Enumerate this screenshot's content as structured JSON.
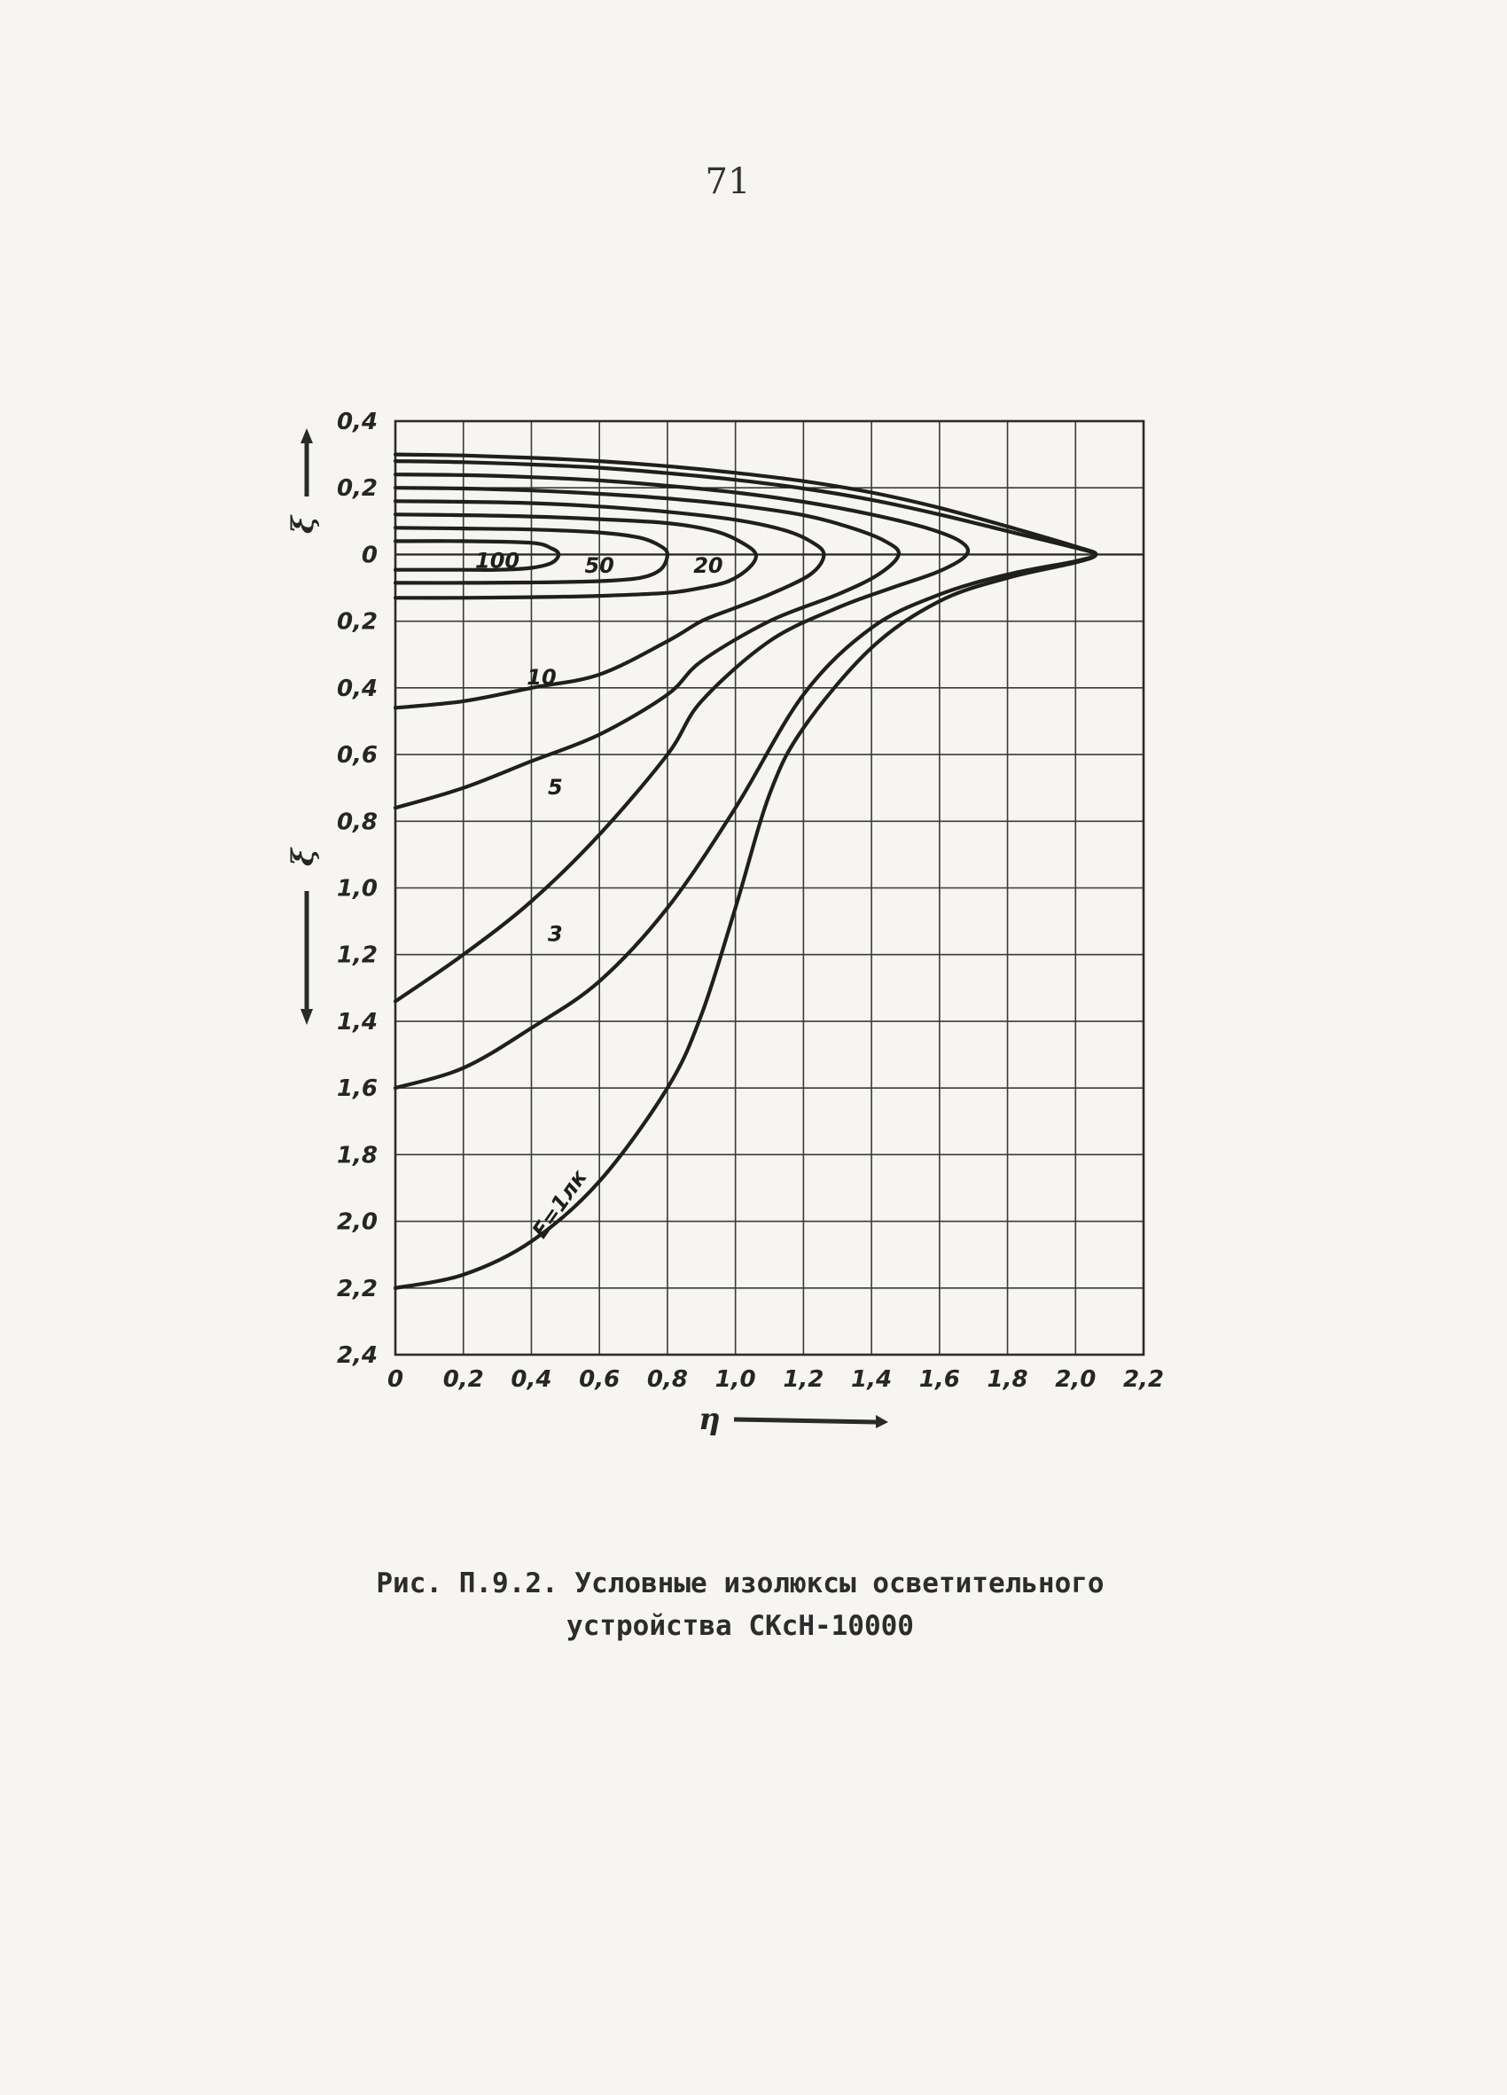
{
  "page": {
    "number": "71"
  },
  "caption": {
    "line1": "Рис. П.9.2. Условные изолюксы осветительного",
    "line2": "устройства СКсН-10000"
  },
  "chart_data": {
    "type": "line",
    "title": "",
    "xlabel": "η",
    "ylabel_up": "ξ",
    "ylabel_down": "ξ",
    "x_ticks": [
      "0",
      "0,2",
      "0,4",
      "0,6",
      "0,8",
      "1,0",
      "1,2",
      "1,4",
      "1,6",
      "1,8",
      "2,0",
      "2,2"
    ],
    "y_ticks_up": [
      "0,4",
      "0,2",
      "0"
    ],
    "y_ticks_down": [
      "0,2",
      "0,4",
      "0,6",
      "0,8",
      "1,0",
      "1,2",
      "1,4",
      "1,6",
      "1,8",
      "2,0",
      "2,2",
      "2,4"
    ],
    "xlim": [
      0,
      2.2
    ],
    "ylim": [
      -2.4,
      0.4
    ],
    "grid": true,
    "series": [
      {
        "name": "100",
        "x": [
          0,
          0.2,
          0.4,
          0.46,
          0.48,
          0.46,
          0.4,
          0.3,
          0.2,
          0
        ],
        "y": [
          0.04,
          0.04,
          0.035,
          0.018,
          0,
          -0.025,
          -0.04,
          -0.046,
          -0.046,
          -0.046
        ]
      },
      {
        "name": "50",
        "x": [
          0,
          0.2,
          0.4,
          0.6,
          0.72,
          0.78,
          0.8,
          0.78,
          0.72,
          0.6,
          0.4,
          0.2,
          0
        ],
        "y": [
          0.08,
          0.078,
          0.075,
          0.066,
          0.05,
          0.025,
          0,
          -0.045,
          -0.07,
          -0.08,
          -0.084,
          -0.085,
          -0.085
        ]
      },
      {
        "name": "20",
        "x": [
          0,
          0.2,
          0.4,
          0.6,
          0.8,
          0.94,
          1.02,
          1.06,
          1.04,
          0.98,
          0.9,
          0.8,
          0.6,
          0.4,
          0.2,
          0
        ],
        "y": [
          0.12,
          0.118,
          0.114,
          0.106,
          0.094,
          0.07,
          0.035,
          0,
          -0.04,
          -0.08,
          -0.1,
          -0.115,
          -0.124,
          -0.128,
          -0.13,
          -0.13
        ]
      },
      {
        "name": "10",
        "x": [
          0,
          0.2,
          0.4,
          0.6,
          0.8,
          1.0,
          1.14,
          1.22,
          1.26,
          1.22,
          1.1,
          1.0,
          0.9,
          0.8,
          0.6,
          0.4,
          0.2,
          0
        ],
        "y": [
          0.16,
          0.158,
          0.154,
          0.144,
          0.128,
          0.104,
          0.074,
          0.04,
          0,
          -0.06,
          -0.12,
          -0.16,
          -0.2,
          -0.26,
          -0.36,
          -0.4,
          -0.44,
          -0.46
        ]
      },
      {
        "name": "5",
        "x": [
          0,
          0.2,
          0.4,
          0.6,
          0.8,
          1.0,
          1.2,
          1.34,
          1.44,
          1.48,
          1.42,
          1.3,
          1.1,
          0.9,
          0.8,
          0.6,
          0.4,
          0.2,
          0
        ],
        "y": [
          0.2,
          0.198,
          0.192,
          0.182,
          0.168,
          0.148,
          0.118,
          0.08,
          0.04,
          0,
          -0.06,
          -0.12,
          -0.2,
          -0.32,
          -0.42,
          -0.54,
          -0.62,
          -0.7,
          -0.76
        ]
      },
      {
        "name": "3",
        "x": [
          0,
          0.2,
          0.4,
          0.6,
          0.8,
          1.0,
          1.2,
          1.4,
          1.56,
          1.66,
          1.68,
          1.6,
          1.46,
          1.3,
          1.1,
          0.9,
          0.8,
          0.6,
          0.4,
          0.2,
          0
        ],
        "y": [
          0.24,
          0.238,
          0.232,
          0.222,
          0.206,
          0.186,
          0.158,
          0.12,
          0.08,
          0.04,
          0,
          -0.05,
          -0.1,
          -0.16,
          -0.26,
          -0.44,
          -0.6,
          -0.84,
          -1.04,
          -1.2,
          -1.34
        ]
      },
      {
        "name": "",
        "x": [
          0,
          0.2,
          0.4,
          0.6,
          0.8,
          1.0,
          1.2,
          1.4,
          1.6,
          1.8,
          2.0,
          2.06,
          2.0,
          1.8,
          1.6,
          1.4,
          1.2,
          1.0,
          0.8,
          0.6,
          0.4,
          0.2,
          0
        ],
        "y": [
          0.28,
          0.277,
          0.27,
          0.26,
          0.244,
          0.224,
          0.198,
          0.164,
          0.12,
          0.07,
          0.02,
          0,
          -0.02,
          -0.06,
          -0.12,
          -0.22,
          -0.42,
          -0.76,
          -1.06,
          -1.28,
          -1.42,
          -1.54,
          -1.6
        ]
      },
      {
        "name": "E=1лк",
        "x": [
          0,
          0.2,
          0.4,
          0.6,
          0.8,
          1.0,
          1.2,
          1.4,
          1.6,
          1.8,
          2.0,
          2.06,
          2.0,
          1.8,
          1.6,
          1.4,
          1.2,
          1.1,
          1.0,
          0.9,
          0.8,
          0.6,
          0.4,
          0.2,
          0
        ],
        "y": [
          0.3,
          0.297,
          0.29,
          0.28,
          0.265,
          0.245,
          0.22,
          0.186,
          0.14,
          0.084,
          0.024,
          0,
          -0.024,
          -0.07,
          -0.14,
          -0.28,
          -0.52,
          -0.72,
          -1.06,
          -1.38,
          -1.6,
          -1.88,
          -2.06,
          -2.16,
          -2.2
        ]
      }
    ],
    "annotations": [
      {
        "text": "100",
        "x": 0.3,
        "y": -0.04
      },
      {
        "text": "50",
        "x": 0.6,
        "y": -0.055
      },
      {
        "text": "20",
        "x": 0.92,
        "y": -0.055
      },
      {
        "text": "10",
        "x": 0.43,
        "y": -0.39
      },
      {
        "text": "5",
        "x": 0.47,
        "y": -0.72
      },
      {
        "text": "3",
        "x": 0.47,
        "y": -1.16
      },
      {
        "text": "E=1лк",
        "x": 0.5,
        "y": -1.96
      }
    ]
  }
}
